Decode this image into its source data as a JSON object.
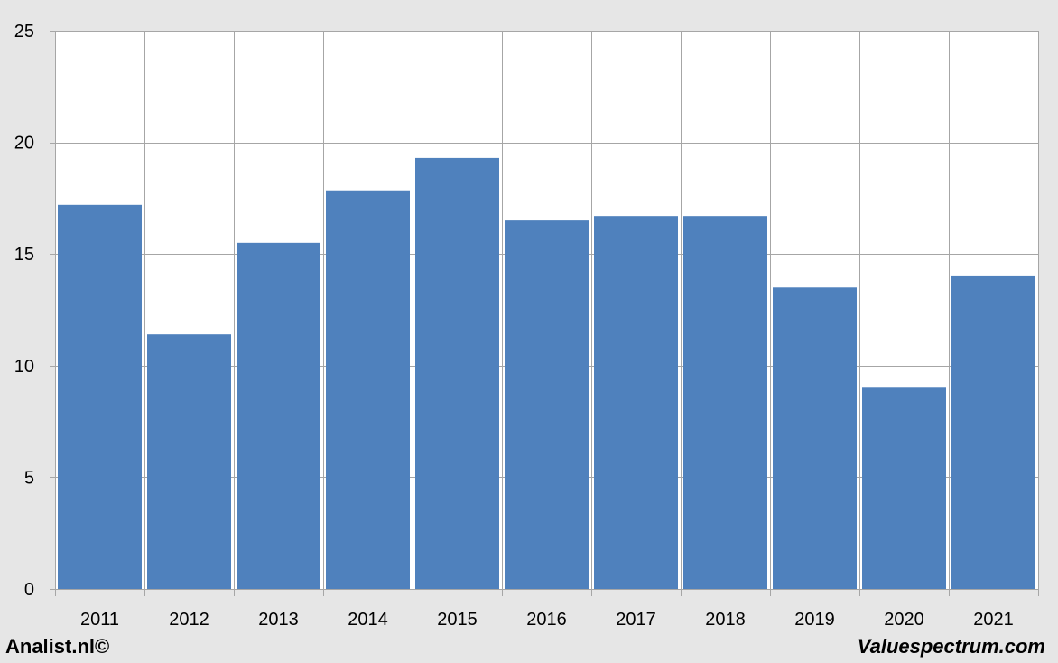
{
  "footer": {
    "left": "Analist.nl©",
    "right": "Valuespectrum.com"
  },
  "colors": {
    "bar": "#4f81bd",
    "grid": "#a6a6a6",
    "plot_background": "#ffffff",
    "page_background": "#e6e6e6"
  },
  "chart_data": {
    "type": "bar",
    "categories": [
      "2011",
      "2012",
      "2013",
      "2014",
      "2015",
      "2016",
      "2017",
      "2018",
      "2019",
      "2020",
      "2021"
    ],
    "values": [
      17.2,
      11.4,
      15.5,
      17.85,
      19.3,
      16.5,
      16.7,
      16.7,
      13.5,
      9.05,
      14.0
    ],
    "title": "",
    "xlabel": "",
    "ylabel": "",
    "ylim": [
      0,
      25
    ],
    "yticks": [
      0,
      5,
      10,
      15,
      20,
      25
    ],
    "grid": true,
    "legend": "none"
  }
}
